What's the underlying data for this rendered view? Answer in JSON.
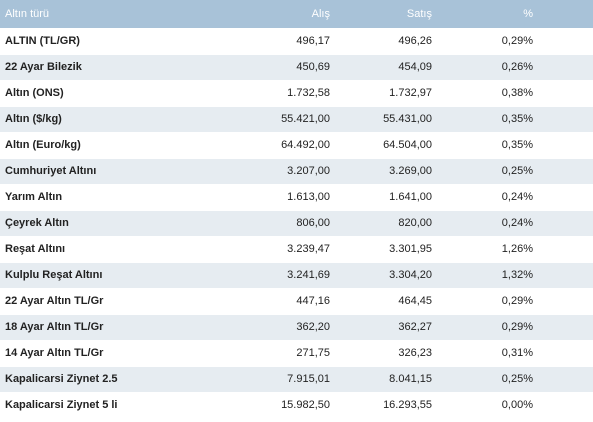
{
  "table": {
    "headers": {
      "name": "Altın türü",
      "buy": "Alış",
      "sell": "Satış",
      "pct": "%"
    },
    "rows": [
      {
        "name": "ALTIN (TL/GR)",
        "buy": "496,17",
        "sell": "496,26",
        "pct": "0,29%"
      },
      {
        "name": "22 Ayar Bilezik",
        "buy": "450,69",
        "sell": "454,09",
        "pct": "0,26%"
      },
      {
        "name": "Altın (ONS)",
        "buy": "1.732,58",
        "sell": "1.732,97",
        "pct": "0,38%"
      },
      {
        "name": "Altın ($/kg)",
        "buy": "55.421,00",
        "sell": "55.431,00",
        "pct": "0,35%"
      },
      {
        "name": "Altın (Euro/kg)",
        "buy": "64.492,00",
        "sell": "64.504,00",
        "pct": "0,35%"
      },
      {
        "name": "Cumhuriyet Altını",
        "buy": "3.207,00",
        "sell": "3.269,00",
        "pct": "0,25%"
      },
      {
        "name": "Yarım Altın",
        "buy": "1.613,00",
        "sell": "1.641,00",
        "pct": "0,24%"
      },
      {
        "name": "Çeyrek Altın",
        "buy": "806,00",
        "sell": "820,00",
        "pct": "0,24%"
      },
      {
        "name": "Reşat Altını",
        "buy": "3.239,47",
        "sell": "3.301,95",
        "pct": "1,26%"
      },
      {
        "name": "Kulplu Reşat Altını",
        "buy": "3.241,69",
        "sell": "3.304,20",
        "pct": "1,32%"
      },
      {
        "name": "22 Ayar Altın TL/Gr",
        "buy": "447,16",
        "sell": "464,45",
        "pct": "0,29%"
      },
      {
        "name": "18 Ayar Altın TL/Gr",
        "buy": "362,20",
        "sell": "362,27",
        "pct": "0,29%"
      },
      {
        "name": "14 Ayar Altın TL/Gr",
        "buy": "271,75",
        "sell": "326,23",
        "pct": "0,31%"
      },
      {
        "name": "Kapalicarsi Ziynet 2.5",
        "buy": "7.915,01",
        "sell": "8.041,15",
        "pct": "0,25%"
      },
      {
        "name": "Kapalicarsi Ziynet 5 li",
        "buy": "15.982,50",
        "sell": "16.293,55",
        "pct": "0,00%"
      }
    ]
  }
}
